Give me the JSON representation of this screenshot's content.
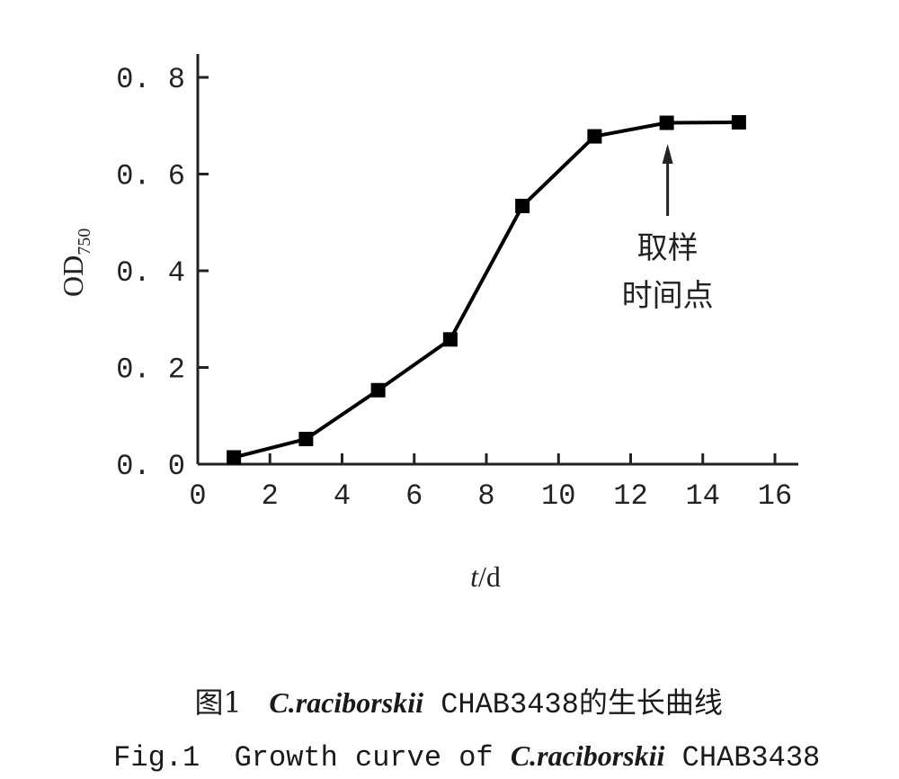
{
  "chart_data": {
    "type": "line",
    "title": "",
    "xlabel_italic": "t",
    "xlabel_unit": "/d",
    "ylabel_main": "OD",
    "ylabel_sub": "750",
    "xlim": [
      0,
      16
    ],
    "ylim": [
      0,
      0.8
    ],
    "xticks": [
      "0",
      "2",
      "4",
      "6",
      "8",
      "10",
      "12",
      "14",
      "16"
    ],
    "yticks": [
      "0.0",
      "0.2",
      "0.4",
      "0.6",
      "0.8"
    ],
    "grid": false,
    "series": [
      {
        "name": "C.raciborskii CHAB3438",
        "marker": "square",
        "x": [
          1,
          3,
          5,
          7,
          9,
          11,
          13,
          15
        ],
        "y": [
          0.014,
          0.052,
          0.153,
          0.258,
          0.534,
          0.678,
          0.706,
          0.707
        ]
      }
    ],
    "annotation": {
      "x": 13,
      "line1": "取样",
      "line2": "时间点"
    }
  },
  "caption": {
    "cn_prefix": "图1",
    "cn_species": "C.raciborskii",
    "cn_suffix": " CHAB3438的生长曲线",
    "en_prefix": "Fig.1  Growth curve of ",
    "en_species": "C.raciborskii",
    "en_suffix": " CHAB3438"
  },
  "colors": {
    "line": "#000000",
    "text": "#1a1a1a"
  }
}
